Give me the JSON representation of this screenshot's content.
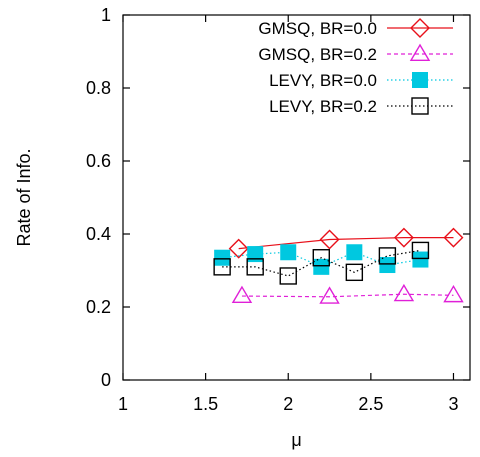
{
  "chart_data": {
    "type": "line",
    "xlabel": "μ",
    "ylabel": "Rate of Info.",
    "xlim": [
      1,
      3.1
    ],
    "ylim": [
      0,
      1
    ],
    "x_ticks": [
      "1",
      "1.5",
      "2",
      "2.5",
      "3"
    ],
    "y_ticks": [
      "0",
      "0.2",
      "0.4",
      "0.6",
      "0.8",
      "1"
    ],
    "legend_position": "top-right",
    "series": [
      {
        "name": "GMSQ, BR=0.0",
        "color": "#e8101a",
        "line": "solid",
        "marker": "diamond-open",
        "points": [
          [
            1.7,
            0.36
          ],
          [
            2.25,
            0.385
          ],
          [
            2.7,
            0.39
          ],
          [
            3.0,
            0.39
          ]
        ]
      },
      {
        "name": "GMSQ, BR=0.2",
        "color": "#e020d8",
        "line": "dashed",
        "marker": "triangle-open",
        "points": [
          [
            1.72,
            0.23
          ],
          [
            2.25,
            0.228
          ],
          [
            2.7,
            0.235
          ],
          [
            3.0,
            0.232
          ]
        ]
      },
      {
        "name": "LEVY, BR=0.0",
        "color": "#00c8e0",
        "line": "dotted",
        "marker": "square-filled",
        "points": [
          [
            1.6,
            0.335
          ],
          [
            1.8,
            0.345
          ],
          [
            2.0,
            0.35
          ],
          [
            2.2,
            0.31
          ],
          [
            2.4,
            0.35
          ],
          [
            2.6,
            0.315
          ],
          [
            2.8,
            0.33
          ]
        ]
      },
      {
        "name": "LEVY, BR=0.2",
        "color": "#000000",
        "line": "dotted",
        "marker": "square-open",
        "points": [
          [
            1.6,
            0.31
          ],
          [
            1.8,
            0.31
          ],
          [
            2.0,
            0.285
          ],
          [
            2.2,
            0.335
          ],
          [
            2.4,
            0.295
          ],
          [
            2.6,
            0.34
          ],
          [
            2.8,
            0.355
          ]
        ]
      }
    ]
  }
}
